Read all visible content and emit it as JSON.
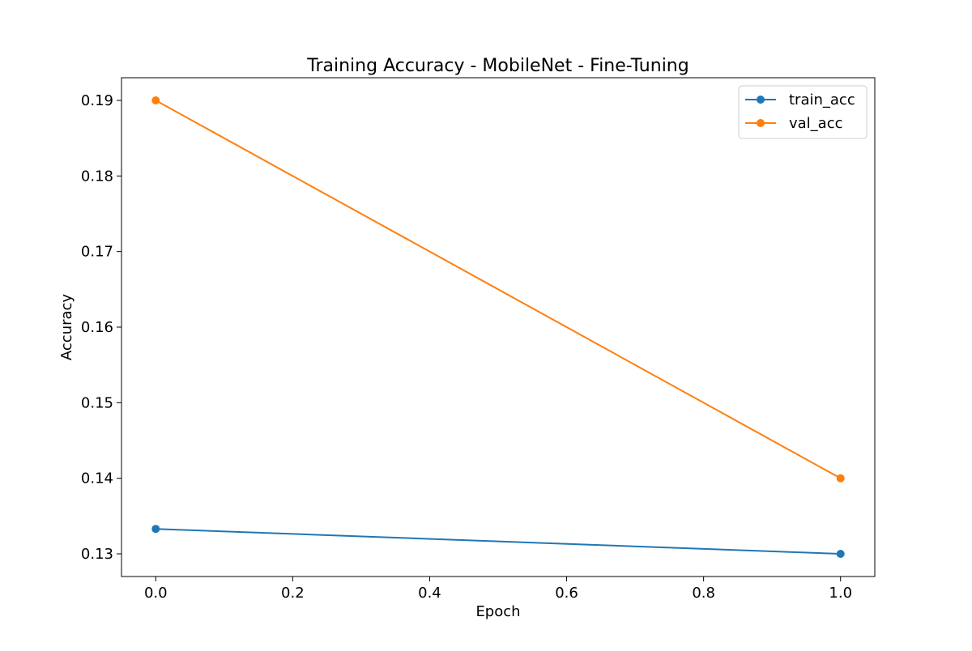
{
  "chart_data": {
    "type": "line",
    "title": "Training Accuracy - MobileNet - Fine-Tuning",
    "xlabel": "Epoch",
    "ylabel": "Accuracy",
    "xlim": [
      -0.05,
      1.05
    ],
    "ylim": [
      0.127,
      0.193
    ],
    "x_ticks": [
      0.0,
      0.2,
      0.4,
      0.6,
      0.8,
      1.0
    ],
    "x_tick_labels": [
      "0.0",
      "0.2",
      "0.4",
      "0.6",
      "0.8",
      "1.0"
    ],
    "y_ticks": [
      0.13,
      0.14,
      0.15,
      0.16,
      0.17,
      0.18,
      0.19
    ],
    "y_tick_labels": [
      "0.13",
      "0.14",
      "0.15",
      "0.16",
      "0.17",
      "0.18",
      "0.19"
    ],
    "grid": false,
    "legend_position": "top-right",
    "x": [
      0.0,
      1.0
    ],
    "series": [
      {
        "name": "train_acc",
        "values": [
          0.1333,
          0.13
        ],
        "color": "#1f77b4"
      },
      {
        "name": "val_acc",
        "values": [
          0.19,
          0.14
        ],
        "color": "#ff7f0e"
      }
    ]
  }
}
